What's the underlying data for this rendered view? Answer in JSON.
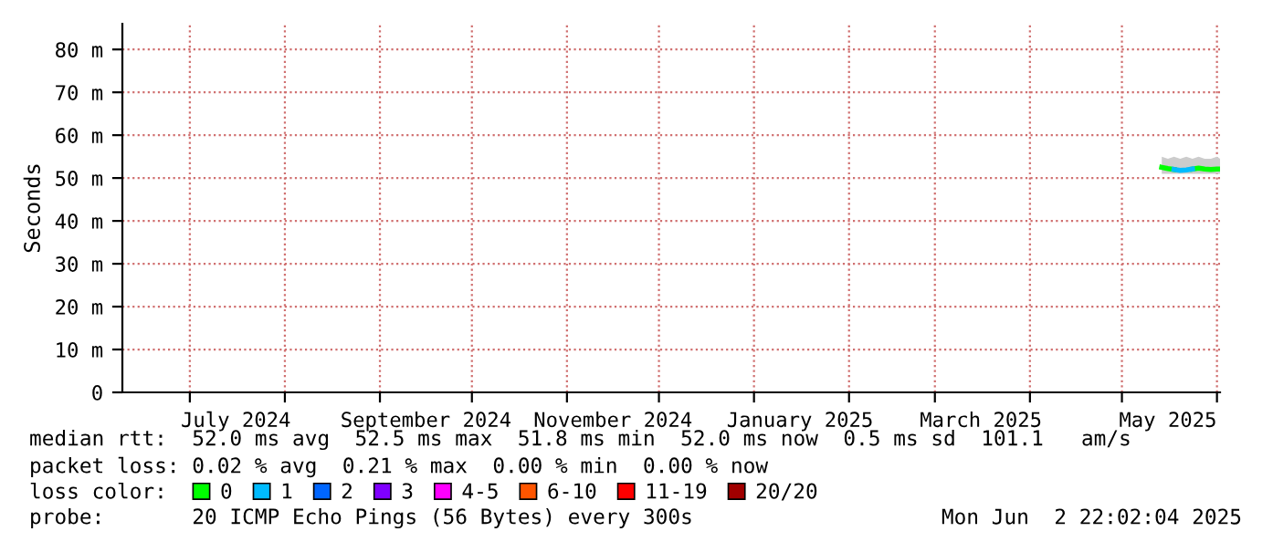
{
  "chart_data": {
    "type": "line",
    "ylabel": "Seconds",
    "x": [
      "2025-05-14",
      "2025-05-16",
      "2025-05-18",
      "2025-05-20",
      "2025-05-22",
      "2025-05-24",
      "2025-05-26",
      "2025-05-28",
      "2025-05-30",
      "2025-06-01",
      "2025-06-02"
    ],
    "series": [
      {
        "name": "0",
        "color": "#00ff00",
        "values": [
          52.5,
          52.2,
          52,
          null,
          null,
          52.1,
          52.3,
          52.1,
          52,
          52.1,
          52.1
        ],
        "lower": [
          51,
          51,
          51,
          51,
          51,
          51,
          51,
          51,
          51,
          51,
          51
        ],
        "upper": [
          55,
          54.5,
          55,
          54.5,
          55,
          54.5,
          55,
          54.5,
          54.5,
          55,
          54.5
        ]
      },
      {
        "name": "1",
        "color": "#00bbff",
        "values": [
          null,
          null,
          52,
          51.8,
          51.9,
          52.1,
          null,
          null,
          null,
          null,
          null
        ]
      },
      {
        "name": "2",
        "color": "#0066ff",
        "values": [
          null,
          null,
          null,
          null,
          null,
          null,
          null,
          null,
          null,
          null,
          null
        ]
      },
      {
        "name": "3",
        "color": "#8000ff",
        "values": [
          null,
          null,
          null,
          null,
          null,
          null,
          null,
          null,
          null,
          null,
          null
        ]
      },
      {
        "name": "4-5",
        "color": "#ff00ff",
        "values": [
          null,
          null,
          null,
          null,
          null,
          null,
          null,
          null,
          null,
          null,
          null
        ]
      },
      {
        "name": "6-10",
        "color": "#ff5500",
        "values": [
          null,
          null,
          null,
          null,
          null,
          null,
          null,
          null,
          null,
          null,
          null
        ]
      },
      {
        "name": "11-19",
        "color": "#ff0000",
        "values": [
          null,
          null,
          null,
          null,
          null,
          null,
          null,
          null,
          null,
          null,
          null
        ]
      },
      {
        "name": "20/20",
        "color": "#a10000",
        "values": [
          null,
          null,
          null,
          null,
          null,
          null,
          null,
          null,
          null,
          null,
          null
        ]
      }
    ],
    "xlim": [
      "2024-06-09",
      "2025-06-02"
    ],
    "xticks": [
      {
        "value": "2024-07-01",
        "label": null
      },
      {
        "value": "2024-07-16",
        "label": "July 2024"
      },
      {
        "value": "2024-08-01",
        "label": null
      },
      {
        "value": "2024-09-01",
        "label": null
      },
      {
        "value": "2024-09-16",
        "label": "September 2024"
      },
      {
        "value": "2024-10-01",
        "label": null
      },
      {
        "value": "2024-11-01",
        "label": null
      },
      {
        "value": "2024-11-16",
        "label": "November 2024"
      },
      {
        "value": "2024-12-01",
        "label": null
      },
      {
        "value": "2025-01-01",
        "label": null
      },
      {
        "value": "2025-01-16",
        "label": "January 2025"
      },
      {
        "value": "2025-02-01",
        "label": null
      },
      {
        "value": "2025-03-01",
        "label": null
      },
      {
        "value": "2025-03-16",
        "label": "March 2025"
      },
      {
        "value": "2025-04-01",
        "label": null
      },
      {
        "value": "2025-05-01",
        "label": null
      },
      {
        "value": "2025-05-16",
        "label": "May 2025"
      },
      {
        "value": "2025-06-01",
        "label": null
      }
    ],
    "ylim": [
      0,
      86
    ],
    "yticks": [
      0,
      {
        "value": 10,
        "label": "10 m"
      },
      {
        "value": 20,
        "label": "20 m"
      },
      {
        "value": 30,
        "label": "30 m"
      },
      {
        "value": 40,
        "label": "40 m"
      },
      {
        "value": 50,
        "label": "50 m"
      },
      {
        "value": 60,
        "label": "60 m"
      },
      {
        "value": 70,
        "label": "70 m"
      },
      {
        "value": 80,
        "label": "80 m"
      }
    ],
    "grid": true,
    "legend": "bottom",
    "marker": "none",
    "line_style": "solid",
    "annotations": [
      "median rtt:  52.0 ms avg  52.5 ms max  51.8 ms min  52.0 ms now  0.5 ms sd  101.1   am/s",
      "packet loss: 0.02 % avg  0.21 % max  0.00 % min  0.00 % now",
      "loss color:",
      "probe:       20 ICMP Echo Pings (56 Bytes) every 300s",
      "Mon Jun  2 22:02:04 2025"
    ]
  }
}
